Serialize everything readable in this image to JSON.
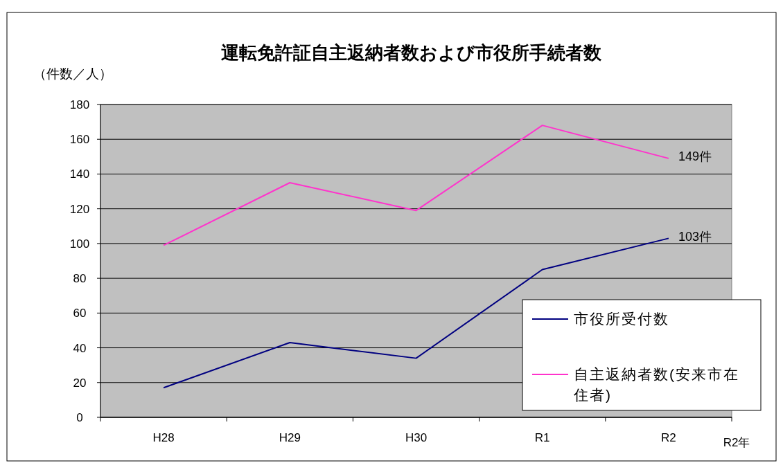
{
  "chart_data": {
    "type": "line",
    "title": "運転免許証自主返納者数および市役所手続者数",
    "ylabel": "（件数／人）",
    "xlabel": "R2年",
    "categories": [
      "H28",
      "H29",
      "H30",
      "R1",
      "R2"
    ],
    "series": [
      {
        "name": "市役所受付数",
        "color": "#000080",
        "values": [
          17,
          43,
          34,
          85,
          103
        ]
      },
      {
        "name": "自主返納者数(安来市在住者)",
        "color": "#ff33cc",
        "values": [
          99,
          135,
          119,
          168,
          149
        ]
      }
    ],
    "ylim": [
      0,
      180
    ],
    "yticks": [
      0,
      20,
      40,
      60,
      80,
      100,
      120,
      140,
      160,
      180
    ],
    "grid": "y",
    "legend": "bottom right",
    "marker": "none",
    "annotations": [
      {
        "text": "149件",
        "x": "R2",
        "y": 149
      },
      {
        "text": "103件",
        "x": "R2",
        "y": 103
      }
    ]
  }
}
